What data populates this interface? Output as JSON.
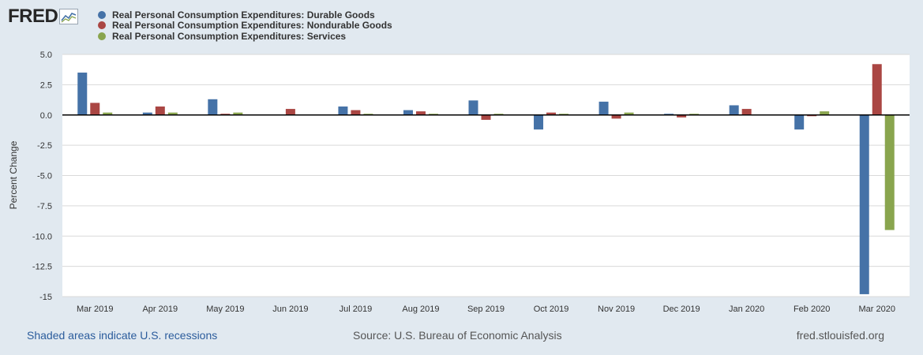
{
  "logo": {
    "text": "FRED",
    "icon": "fred-graph-icon"
  },
  "colors": {
    "background": "#e1e9f0",
    "plot": "#ffffff",
    "durable": "#4572a7",
    "nondurable": "#aa4643",
    "services": "#89a54e",
    "link": "#2b5c9c"
  },
  "footer": {
    "recessions": "Shaded areas indicate U.S. recessions",
    "source": "Source: U.S. Bureau of Economic Analysis",
    "site": "fred.stlouisfed.org"
  },
  "chart_data": {
    "type": "bar",
    "title": "",
    "xlabel": "",
    "ylabel": "Percent Change",
    "ylim": [
      -15,
      5
    ],
    "yticks": [
      5.0,
      2.5,
      0.0,
      -2.5,
      -5.0,
      -7.5,
      -10.0,
      -12.5,
      -15
    ],
    "ytick_labels": [
      "5.0",
      "2.5",
      "0.0",
      "-2.5",
      "-5.0",
      "-7.5",
      "-10.0",
      "-12.5",
      "-15"
    ],
    "grid": true,
    "legend": "top-left",
    "categories": [
      "Mar 2019",
      "Apr 2019",
      "May 2019",
      "Jun 2019",
      "Jul 2019",
      "Aug 2019",
      "Sep 2019",
      "Oct 2019",
      "Nov 2019",
      "Dec 2019",
      "Jan 2020",
      "Feb 2020",
      "Mar 2020"
    ],
    "series": [
      {
        "name": "Real Personal Consumption Expenditures: Durable Goods",
        "values": [
          3.5,
          0.2,
          1.3,
          0.0,
          0.7,
          0.4,
          1.2,
          -1.2,
          1.1,
          0.1,
          0.8,
          -1.2,
          -14.8
        ]
      },
      {
        "name": "Real Personal Consumption Expenditures: Nondurable Goods",
        "values": [
          1.0,
          0.7,
          0.1,
          0.5,
          0.4,
          0.3,
          -0.4,
          0.2,
          -0.3,
          -0.2,
          0.5,
          -0.1,
          4.2
        ]
      },
      {
        "name": "Real Personal Consumption Expenditures: Services",
        "values": [
          0.2,
          0.2,
          0.2,
          0.0,
          0.1,
          0.1,
          0.1,
          0.1,
          0.2,
          0.1,
          0.0,
          0.3,
          -9.5
        ]
      }
    ]
  }
}
